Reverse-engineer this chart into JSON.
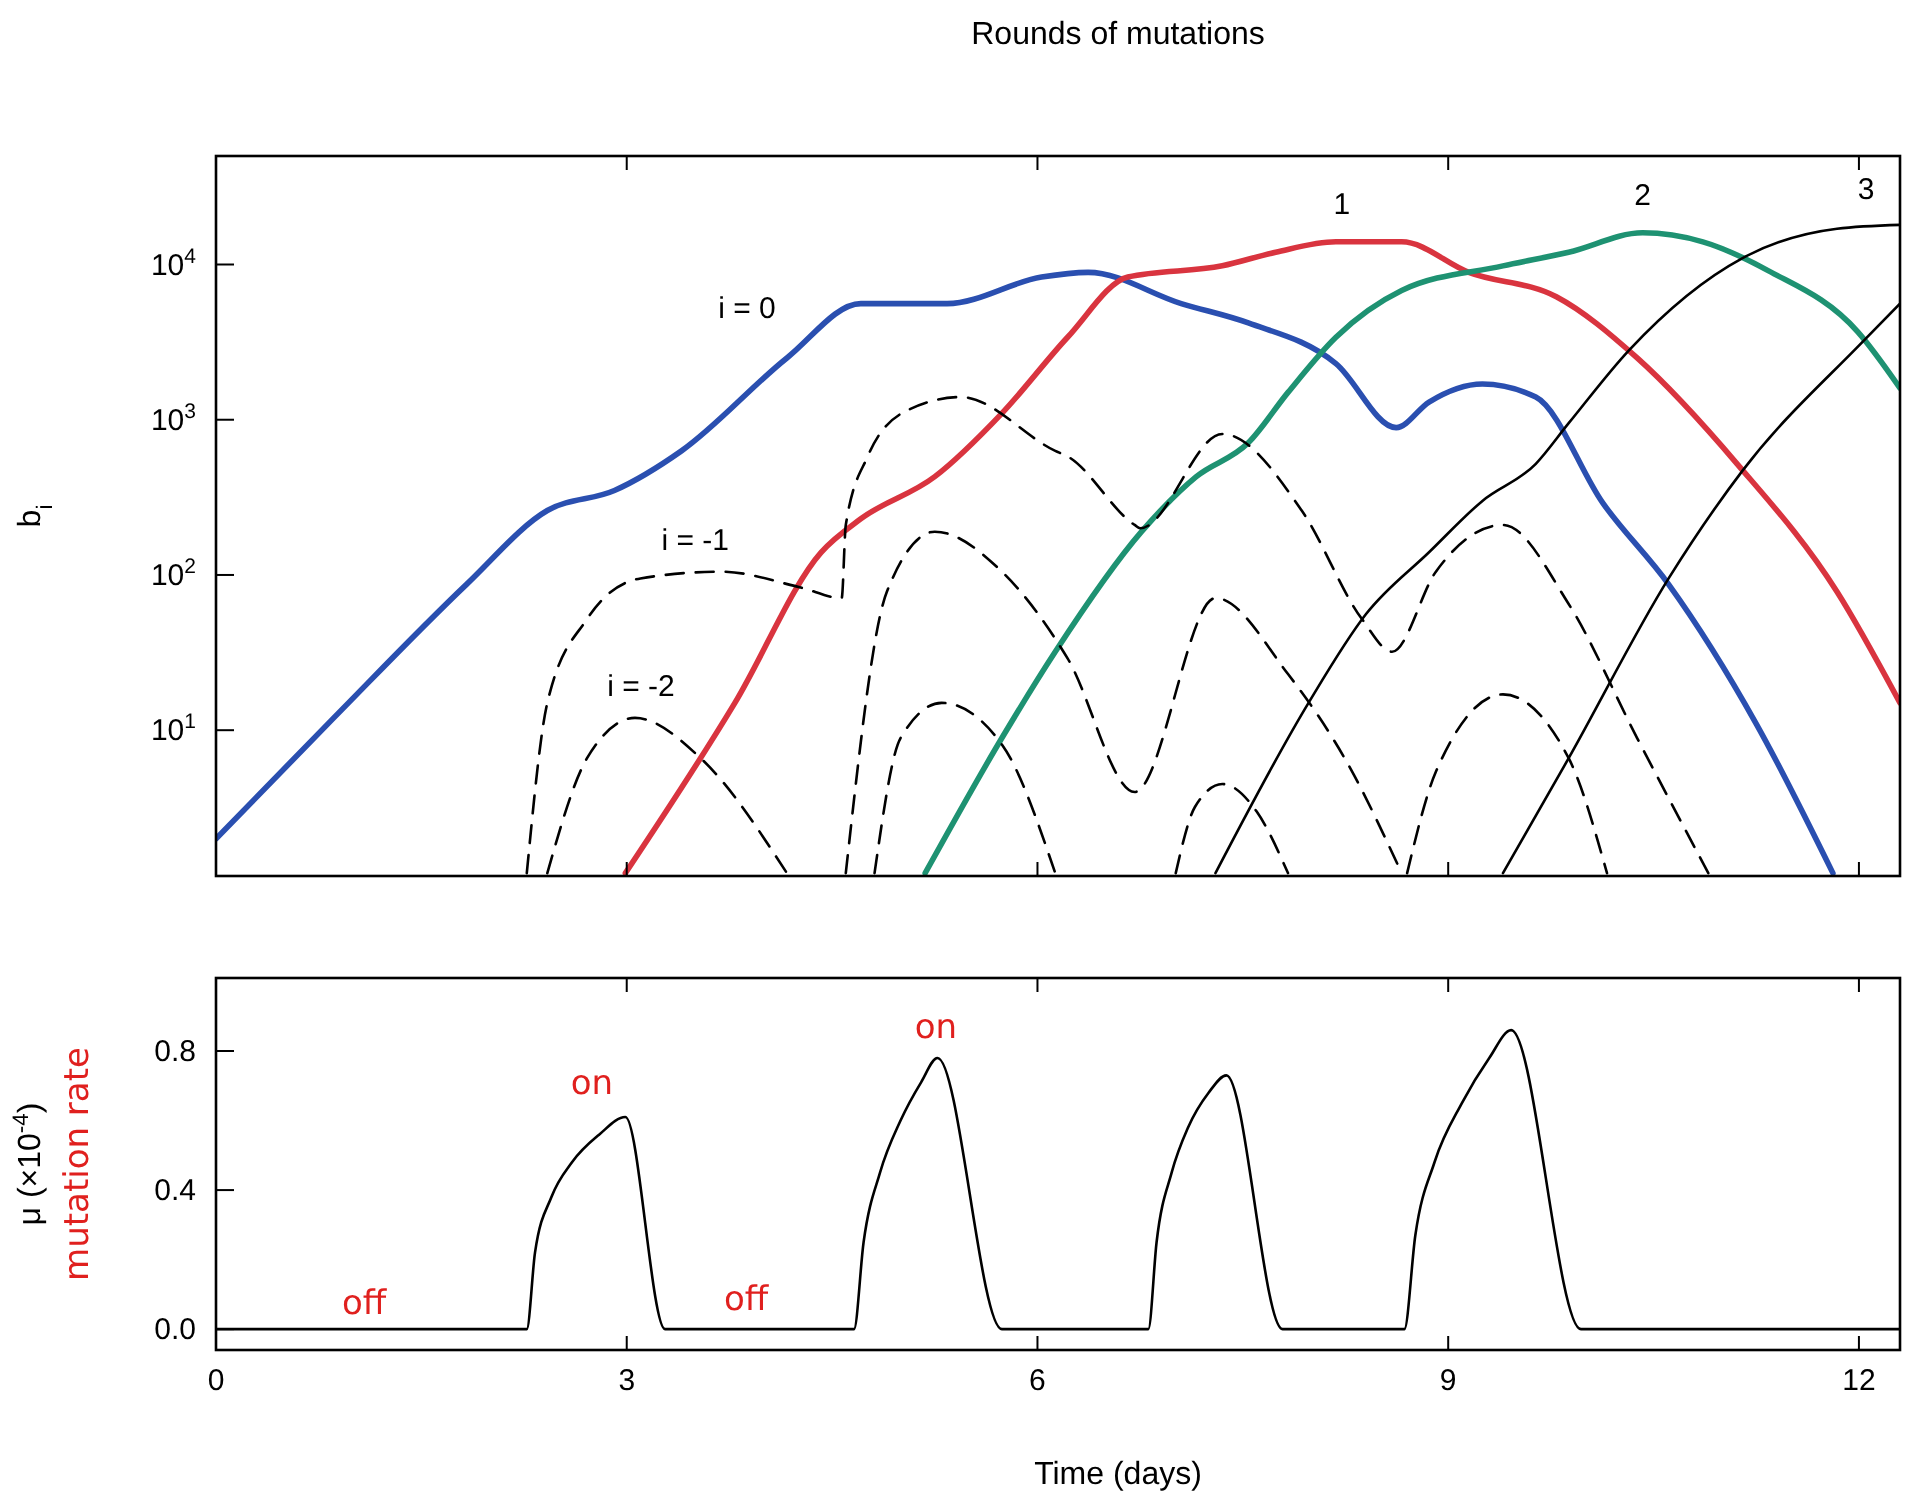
{
  "chart_data": [
    {
      "type": "line",
      "title": "Rounds of mutations",
      "ylabel": "b$_{i}$",
      "log": true,
      "xlim": [
        0,
        12.3
      ],
      "ylim": [
        1.15,
        50000
      ],
      "xticks": [
        {
          "value": 0,
          "label": null
        },
        {
          "value": 3,
          "label": null
        },
        {
          "value": 6,
          "label": null
        },
        {
          "value": 9,
          "label": null
        },
        {
          "value": 12,
          "label": null
        }
      ],
      "yticks": [
        {
          "value": 10,
          "label": "10$^{1}$"
        },
        {
          "value": 100,
          "label": "10$^{2}$"
        },
        {
          "value": 1000,
          "label": "10$^{3}$"
        },
        {
          "value": 10000,
          "label": "10$^{4}$"
        }
      ],
      "tick_labels": "y",
      "grid": false,
      "series": [
        {
          "name": "i = 0",
          "color": "#2a4fb0",
          "x": [
            0,
            0.86,
            1.83,
            2.42,
            2.91,
            3.4,
            4.17,
            4.71,
            5.34,
            6.03,
            6.37,
            7.05,
            7.54,
            8.18,
            8.62,
            8.86,
            9.25,
            9.64,
            10.13,
            10.61,
            11.25,
            11.81
          ],
          "values": [
            2.0,
            12,
            87,
            260,
            350,
            630,
            2500,
            5600,
            5600,
            8300,
            8900,
            5600,
            4200,
            2300,
            890,
            1300,
            1700,
            1400,
            290,
            87,
            11,
            1.2
          ]
        },
        {
          "name": "1",
          "color": "#d9343f",
          "x": [
            2.99,
            3.79,
            4.42,
            4.71,
            5.25,
            5.74,
            6.22,
            6.66,
            7.35,
            7.74,
            8.18,
            8.66,
            9.15,
            9.79,
            10.38,
            11.11,
            11.84,
            12.3
          ],
          "values": [
            1.2,
            15,
            140,
            230,
            430,
            1100,
            3400,
            8300,
            9800,
            12000,
            14000,
            14000,
            8900,
            6200,
            2500,
            520,
            78,
            15
          ]
        },
        {
          "name": "2",
          "color": "#1e9272",
          "x": [
            5.18,
            5.74,
            6.13,
            6.76,
            7.16,
            7.54,
            7.83,
            8.18,
            8.66,
            9.4,
            9.88,
            10.42,
            10.86,
            11.34,
            11.99,
            12.3
          ],
          "values": [
            1.2,
            8.9,
            32,
            190,
            430,
            710,
            1500,
            3400,
            6800,
            9800,
            12000,
            16000,
            14000,
            9100,
            3700,
            1600
          ]
        },
        {
          "name": "3",
          "color": "#000000",
          "x": [
            7.3,
            7.98,
            8.4,
            8.86,
            9.25,
            9.64,
            9.88,
            10.32,
            11.15,
            11.84,
            12.3
          ],
          "values": [
            1.2,
            15,
            56,
            140,
            300,
            520,
            950,
            2800,
            11000,
            17000,
            18000
          ]
        },
        {
          "name": "i = -1",
          "color": "#000000",
          "line_style": "dashed",
          "x": [
            2.27,
            2.42,
            2.71,
            3.1,
            3.69,
            4.27,
            4.57,
            4.6,
            4.76,
            5.05,
            5.44,
            6.13,
            6.22,
            6.71,
            6.75,
            7.35,
            7.93,
            8.37,
            8.59,
            8.91,
            9.4,
            9.88,
            10.38,
            10.9
          ],
          "values": [
            1.2,
            15,
            52,
            95,
            105,
            83,
            71,
            210,
            580,
            1150,
            1400,
            630,
            580,
            210,
            200,
            810,
            260,
            52,
            32,
            105,
            210,
            65,
            8.9,
            1.2
          ]
        },
        {
          "name": "i = -2",
          "color": "#000000",
          "line_style": "dashed",
          "x": [
            2.42,
            2.71,
            3.06,
            3.54,
            4.17
          ],
          "values": [
            1.2,
            6.6,
            12,
            6.6,
            1.2
          ]
        },
        {
          "color": "#000000",
          "line_style": "dashed",
          "x": [
            4.6,
            4.9,
            5.25,
            5.74,
            6.22,
            6.71,
            7.3,
            7.83,
            8.27,
            8.66
          ],
          "values": [
            1.2,
            78,
            190,
            105,
            29,
            4.0,
            71,
            23,
            6.0,
            1.2
          ]
        },
        {
          "color": "#000000",
          "line_style": "dashed",
          "x": [
            4.81,
            5.0,
            5.3,
            5.74,
            6.13
          ],
          "values": [
            1.2,
            8.9,
            15,
            8.1,
            1.2
          ]
        },
        {
          "color": "#000000",
          "line_style": "dashed",
          "x": [
            7.01,
            7.15,
            7.35,
            7.6,
            7.83
          ],
          "values": [
            1.2,
            3.2,
            4.5,
            3.0,
            1.2
          ]
        },
        {
          "color": "#000000",
          "line_style": "dashed",
          "x": [
            8.7,
            8.91,
            9.4,
            9.88,
            10.16
          ],
          "values": [
            1.2,
            5.4,
            17,
            6.6,
            1.2
          ]
        },
        {
          "color": "#000000",
          "x": [
            9.4,
            9.88,
            10.61,
            11.15,
            12.03,
            12.3
          ],
          "values": [
            1.2,
            6.6,
            95,
            470,
            3200,
            5600
          ]
        }
      ]
    },
    {
      "type": "line",
      "xlabel": "Time (days)",
      "ylabel": "μ (×10$^{-4}$)",
      "xlim": [
        0,
        12.3
      ],
      "ylim": [
        -0.06,
        1.01
      ],
      "xticks": [
        0,
        3,
        6,
        9,
        12
      ],
      "yticks": [
        {
          "value": 0,
          "label": "0.0"
        },
        {
          "value": 0.4,
          "label": "0.4"
        },
        {
          "value": 0.8,
          "label": "0.8"
        }
      ],
      "grid": false,
      "series": [
        {
          "color": "#000000",
          "x": [
            0,
            2.27,
            2.33,
            2.45,
            2.6,
            2.8,
            2.99,
            3.28,
            4.66,
            4.73,
            4.85,
            5.0,
            5.15,
            5.27,
            5.74,
            6.81,
            6.87,
            6.98,
            7.1,
            7.25,
            7.38,
            7.79,
            8.68,
            8.76,
            8.9,
            9.1,
            9.3,
            9.46,
            9.97,
            12.3
          ],
          "values": [
            0,
            0,
            0.22,
            0.38,
            0.48,
            0.56,
            0.61,
            0,
            0,
            0.25,
            0.45,
            0.6,
            0.71,
            0.78,
            0,
            0,
            0.25,
            0.45,
            0.58,
            0.68,
            0.73,
            0,
            0,
            0.27,
            0.48,
            0.65,
            0.78,
            0.86,
            0,
            0
          ]
        }
      ],
      "annotations": [
        "off",
        "on",
        "off",
        "on",
        "mutation rate"
      ]
    }
  ]
}
